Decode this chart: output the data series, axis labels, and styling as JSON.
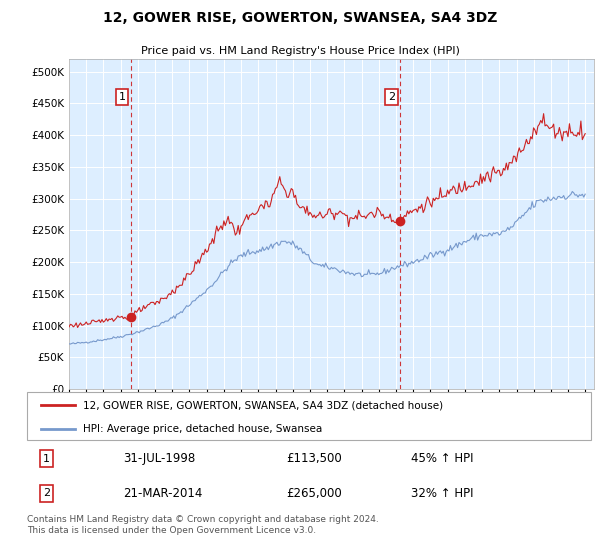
{
  "title": "12, GOWER RISE, GOWERTON, SWANSEA, SA4 3DZ",
  "subtitle": "Price paid vs. HM Land Registry's House Price Index (HPI)",
  "xlim": [
    1995.0,
    2025.5
  ],
  "ylim": [
    0,
    520000
  ],
  "yticks": [
    0,
    50000,
    100000,
    150000,
    200000,
    250000,
    300000,
    350000,
    400000,
    450000,
    500000
  ],
  "ytick_labels": [
    "£0",
    "£50K",
    "£100K",
    "£150K",
    "£200K",
    "£250K",
    "£300K",
    "£350K",
    "£400K",
    "£450K",
    "£500K"
  ],
  "xtick_years": [
    1995,
    1996,
    1997,
    1998,
    1999,
    2000,
    2001,
    2002,
    2003,
    2004,
    2005,
    2006,
    2007,
    2008,
    2009,
    2010,
    2011,
    2012,
    2013,
    2014,
    2015,
    2016,
    2017,
    2018,
    2019,
    2020,
    2021,
    2022,
    2023,
    2024,
    2025
  ],
  "background_color": "#ddeeff",
  "red_line_color": "#cc2222",
  "blue_line_color": "#7799cc",
  "point1_x": 1998.58,
  "point1_y": 113500,
  "point1_label": "1",
  "point1_date": "31-JUL-1998",
  "point1_price": "£113,500",
  "point1_hpi": "45% ↑ HPI",
  "point2_x": 2014.22,
  "point2_y": 265000,
  "point2_label": "2",
  "point2_date": "21-MAR-2014",
  "point2_price": "£265,000",
  "point2_hpi": "32% ↑ HPI",
  "legend_label_red": "12, GOWER RISE, GOWERTON, SWANSEA, SA4 3DZ (detached house)",
  "legend_label_blue": "HPI: Average price, detached house, Swansea",
  "footer_text": "Contains HM Land Registry data © Crown copyright and database right 2024.\nThis data is licensed under the Open Government Licence v3.0."
}
